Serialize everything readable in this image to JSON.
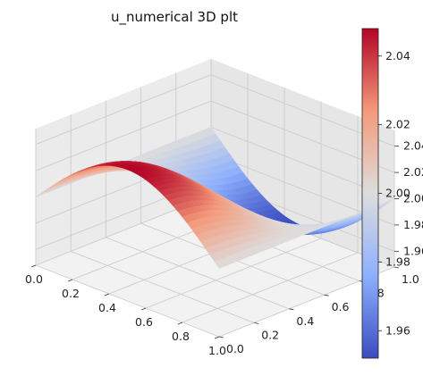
{
  "chart_data": {
    "type": "surface3d",
    "title": "u_numerical 3D plt",
    "colormap": "coolwarm",
    "colormap_stops": [
      "#3b4cc0",
      "#dddddd",
      "#b40426"
    ],
    "pane_color": "#f2f2f2",
    "grid_color": "#cccccc",
    "grid": true,
    "x_range": [
      0.0,
      1.0
    ],
    "y_range": [
      0.0,
      1.0
    ],
    "z_range": [
      1.948,
      2.052
    ],
    "x_ticks": [
      "0.0",
      "0.2",
      "0.4",
      "0.6",
      "0.8",
      "1.0"
    ],
    "y_ticks": [
      "0.0",
      "0.2",
      "0.4",
      "0.6",
      "0.8",
      "1.0"
    ],
    "z_ticks": [
      "1.96",
      "1.98",
      "2.00",
      "2.02",
      "2.04"
    ],
    "colorbar_range": [
      1.952,
      2.048
    ],
    "colorbar_ticks": [
      "1.96",
      "1.98",
      "2.00",
      "2.02",
      "2.04"
    ],
    "surface_function": "2 + 0.048*sin(pi*x)*cos(pi*y)"
  }
}
